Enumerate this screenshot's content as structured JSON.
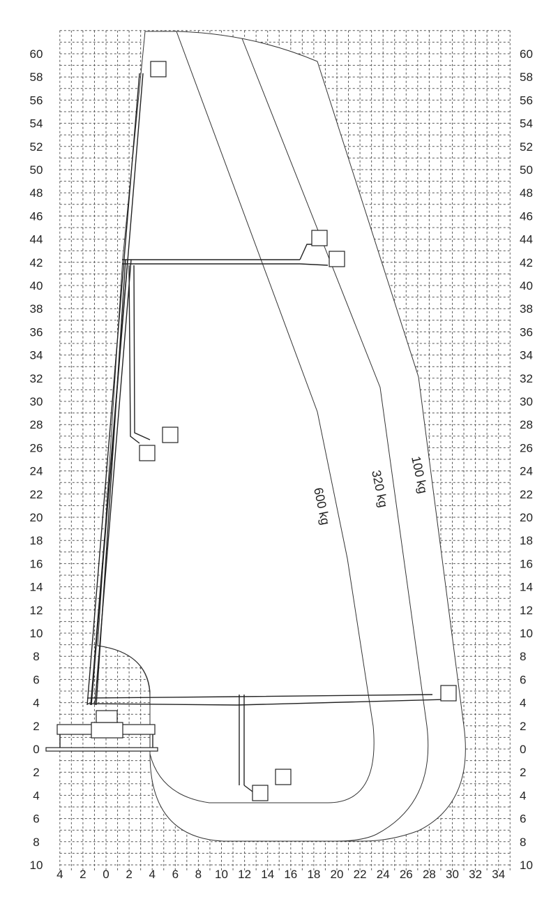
{
  "diagram": {
    "type": "working-range diagram",
    "x_axis": {
      "tick_values": [
        -4,
        -2,
        0,
        2,
        4,
        6,
        8,
        10,
        12,
        14,
        16,
        18,
        20,
        22,
        24,
        26,
        28,
        30,
        32,
        34
      ],
      "tick_labels": [
        "4",
        "2",
        "0",
        "2",
        "4",
        "6",
        "8",
        "10",
        "12",
        "14",
        "16",
        "18",
        "20",
        "22",
        "24",
        "26",
        "28",
        "30",
        "32",
        "34"
      ]
    },
    "y_axis": {
      "tick_values": [
        60,
        58,
        56,
        54,
        52,
        50,
        48,
        46,
        44,
        42,
        40,
        38,
        36,
        34,
        32,
        30,
        28,
        26,
        24,
        22,
        20,
        18,
        16,
        14,
        12,
        10,
        8,
        6,
        4,
        2,
        0,
        -2,
        -4,
        -6,
        -8,
        -10
      ],
      "tick_labels": [
        "60",
        "58",
        "56",
        "54",
        "52",
        "50",
        "48",
        "46",
        "44",
        "42",
        "40",
        "38",
        "36",
        "34",
        "32",
        "30",
        "28",
        "26",
        "24",
        "22",
        "20",
        "18",
        "16",
        "14",
        "12",
        "10",
        "8",
        "6",
        "4",
        "2",
        "0",
        "2",
        "4",
        "6",
        "8",
        "10"
      ]
    },
    "grid": true,
    "line_color": "#333333",
    "load_curves": [
      {
        "label": "600 kg"
      },
      {
        "label": "320 kg"
      },
      {
        "label": "100 kg"
      }
    ]
  }
}
